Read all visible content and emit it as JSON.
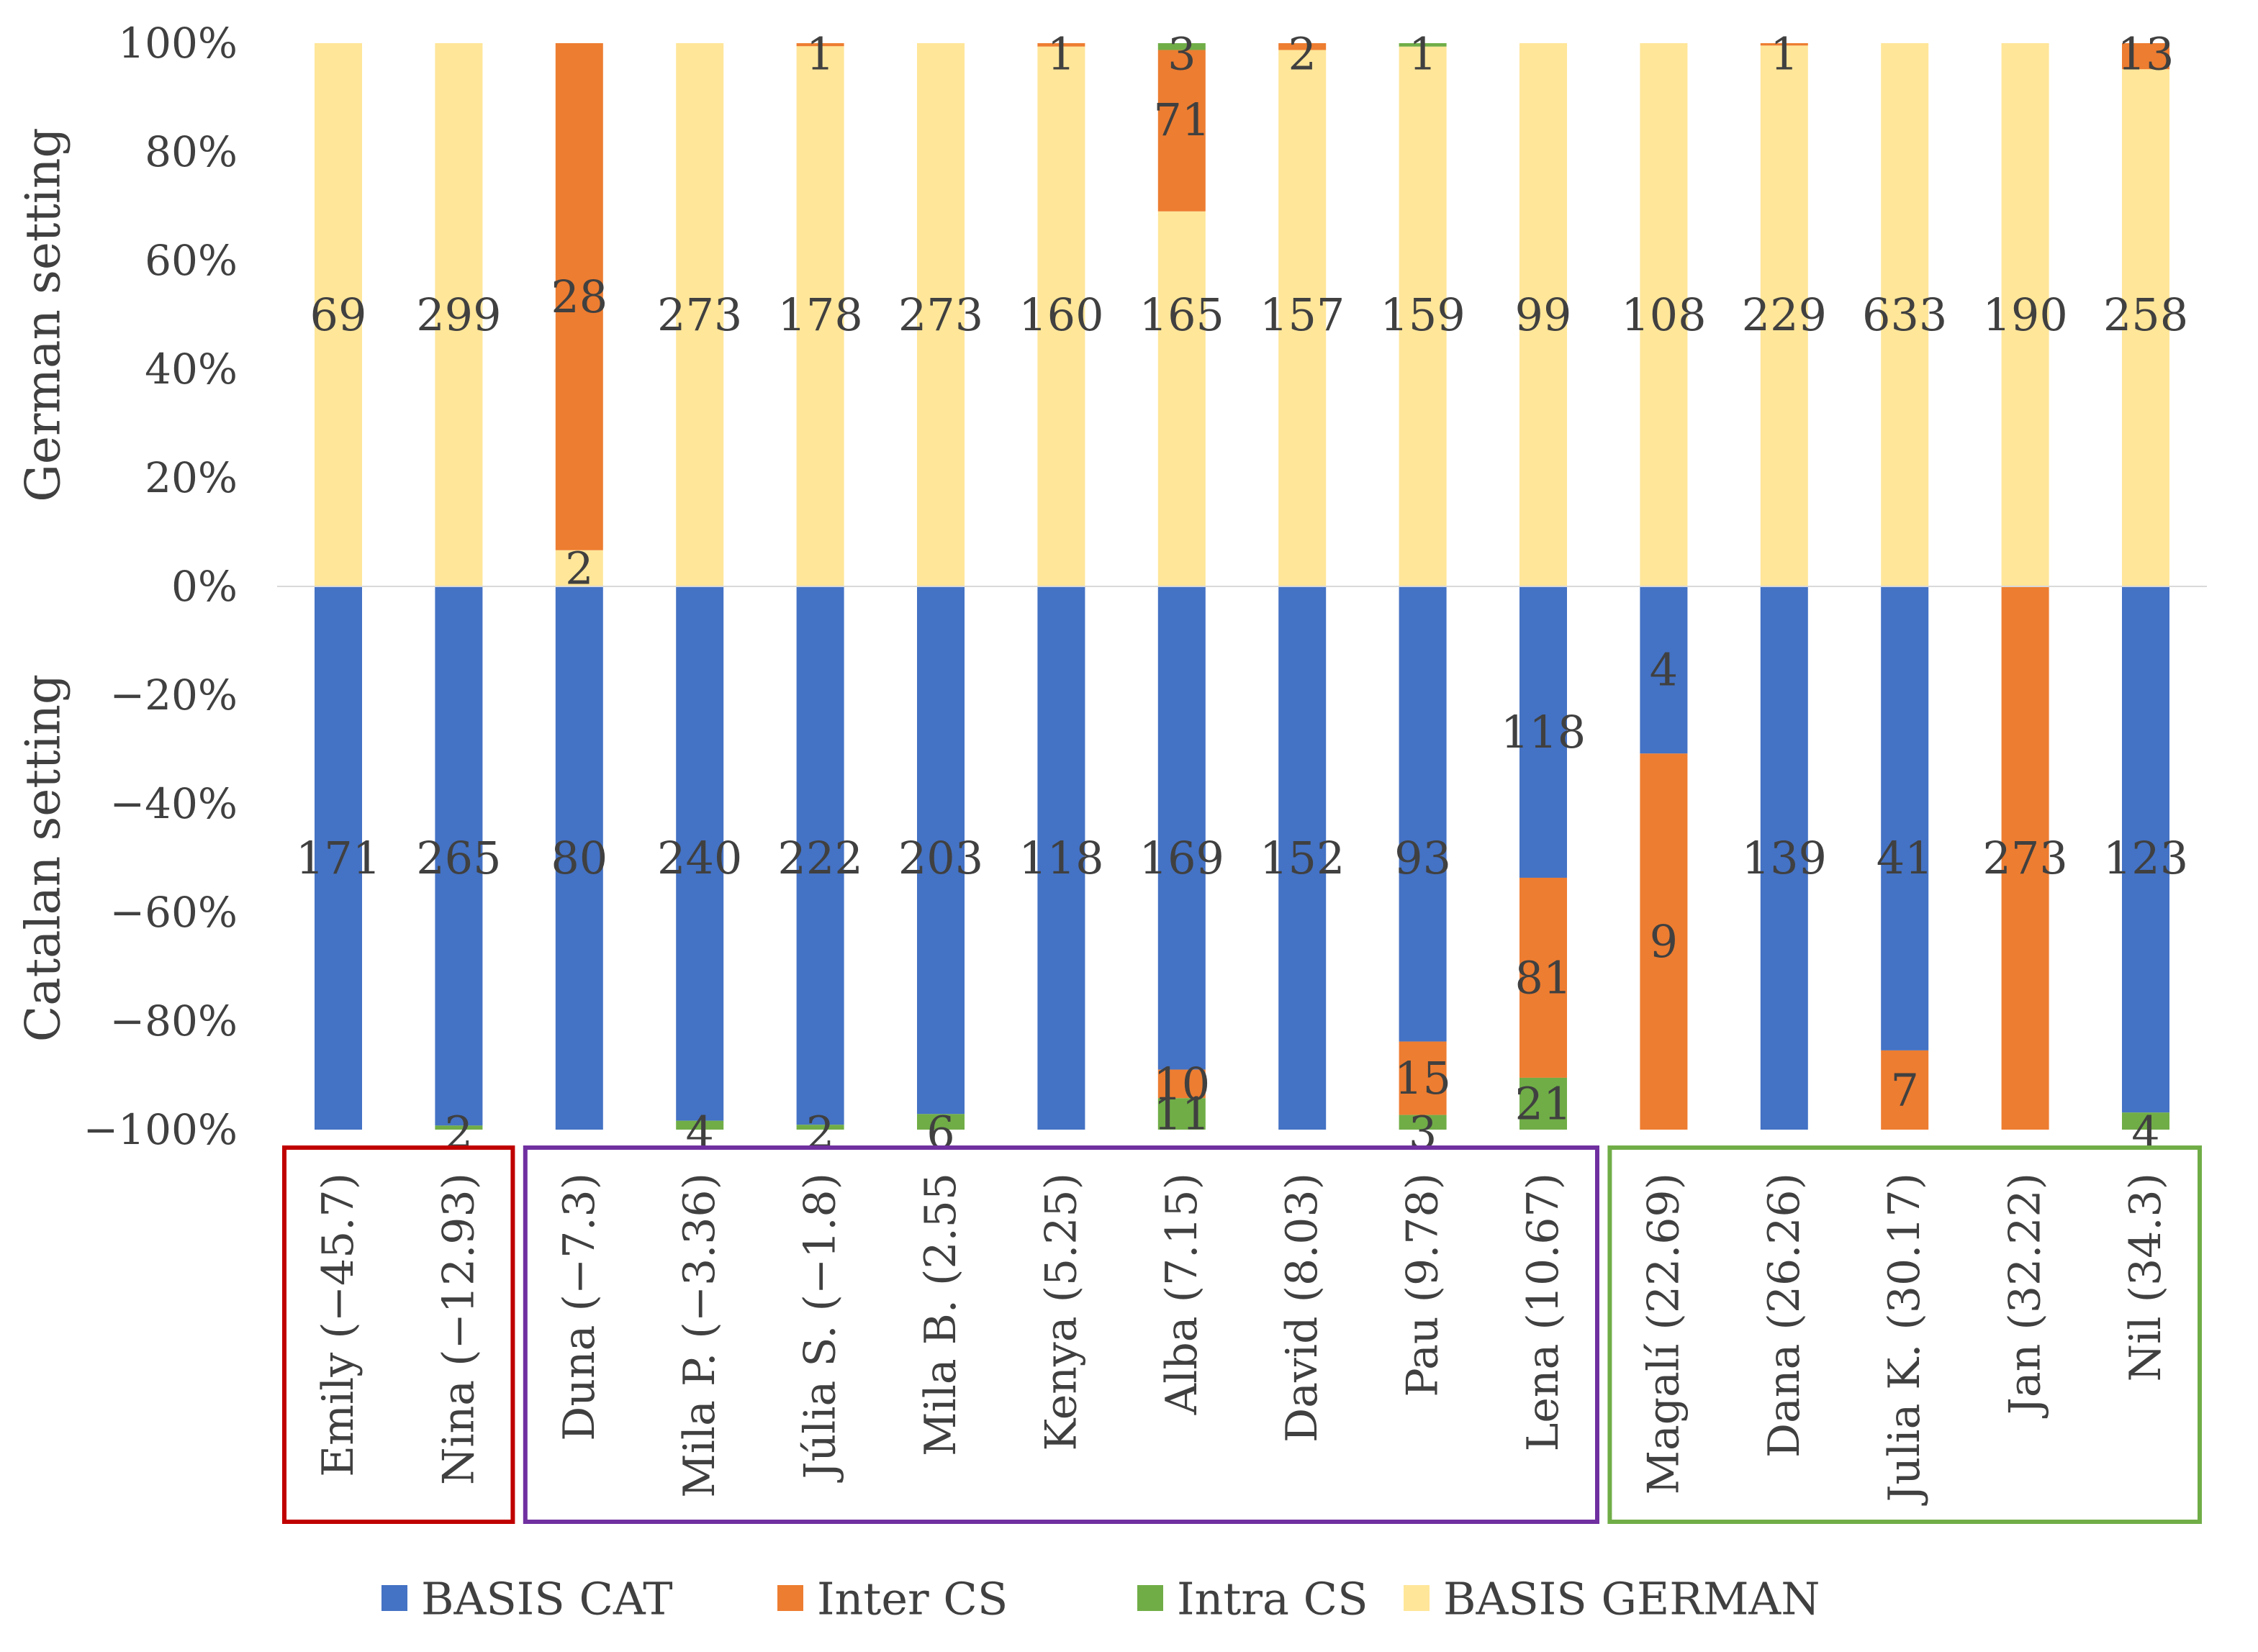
{
  "chart_data": {
    "type": "bar",
    "stacked": true,
    "normalized": true,
    "categories": [
      "Emily (−45.7)",
      "Nina (−12.93)",
      "Duna (−7.3)",
      "Mila P. (−3.36)",
      "Júlia S. (−1.8)",
      "Mila B. (2.55",
      "Kenya (5.25)",
      "Alba (7.15)",
      "David (8.03)",
      "Pau (9.78)",
      "Lena (10.67)",
      "Magalí (22.69)",
      "Dana (26.26)",
      "Julia K. (30.17)",
      "Jan (32.22)",
      "Nil (34.3)"
    ],
    "y_ticks": [
      "100%",
      "80%",
      "60%",
      "40%",
      "20%",
      "0%",
      "−20%",
      "−40%",
      "−60%",
      "−80%",
      "−100%"
    ],
    "y_range": [
      -100,
      100
    ],
    "grid": false,
    "ylabel_top": "German setting",
    "ylabel_bottom": "Catalan setting",
    "legend_position": "bottom",
    "series": [
      {
        "name": "BASIS CAT",
        "color": "#4472C4"
      },
      {
        "name": "Inter CS",
        "color": "#ED7D31"
      },
      {
        "name": "Intra CS",
        "color": "#70AD47"
      },
      {
        "name": "BASIS GERMAN",
        "color": "#FFE699"
      }
    ],
    "german_setting": [
      {
        "basis_german": 69,
        "inter_cs": 0,
        "intra_cs": 0
      },
      {
        "basis_german": 299,
        "inter_cs": 0,
        "intra_cs": 0
      },
      {
        "basis_german": 2,
        "inter_cs": 28,
        "intra_cs": 0
      },
      {
        "basis_german": 273,
        "inter_cs": 0,
        "intra_cs": 0
      },
      {
        "basis_german": 178,
        "inter_cs": 1,
        "intra_cs": 0
      },
      {
        "basis_german": 273,
        "inter_cs": 0,
        "intra_cs": 0
      },
      {
        "basis_german": 160,
        "inter_cs": 1,
        "intra_cs": 0
      },
      {
        "basis_german": 165,
        "inter_cs": 71,
        "intra_cs": 3
      },
      {
        "basis_german": 157,
        "inter_cs": 2,
        "intra_cs": 0
      },
      {
        "basis_german": 159,
        "inter_cs": 0,
        "intra_cs": 1
      },
      {
        "basis_german": 99,
        "inter_cs": 0,
        "intra_cs": 0
      },
      {
        "basis_german": 108,
        "inter_cs": 0,
        "intra_cs": 0
      },
      {
        "basis_german": 229,
        "inter_cs": 1,
        "intra_cs": 0
      },
      {
        "basis_german": 633,
        "inter_cs": 0,
        "intra_cs": 0
      },
      {
        "basis_german": 190,
        "inter_cs": 0,
        "intra_cs": 0
      },
      {
        "basis_german": 258,
        "inter_cs": 13,
        "intra_cs": 0
      }
    ],
    "catalan_setting": [
      {
        "basis_cat": 171,
        "inter_cs": 0,
        "intra_cs": 0
      },
      {
        "basis_cat": 265,
        "inter_cs": 0,
        "intra_cs": 2
      },
      {
        "basis_cat": 80,
        "inter_cs": 0,
        "intra_cs": 0
      },
      {
        "basis_cat": 240,
        "inter_cs": 0,
        "intra_cs": 4
      },
      {
        "basis_cat": 222,
        "inter_cs": 0,
        "intra_cs": 2
      },
      {
        "basis_cat": 203,
        "inter_cs": 0,
        "intra_cs": 6
      },
      {
        "basis_cat": 118,
        "inter_cs": 0,
        "intra_cs": 0
      },
      {
        "basis_cat": 169,
        "inter_cs": 10,
        "intra_cs": 11
      },
      {
        "basis_cat": 152,
        "inter_cs": 0,
        "intra_cs": 0
      },
      {
        "basis_cat": 93,
        "inter_cs": 15,
        "intra_cs": 3
      },
      {
        "basis_cat": 118,
        "inter_cs": 81,
        "intra_cs": 21
      },
      {
        "basis_cat": 4,
        "inter_cs": 9,
        "intra_cs": 0
      },
      {
        "basis_cat": 139,
        "inter_cs": 0,
        "intra_cs": 0
      },
      {
        "basis_cat": 41,
        "inter_cs": 7,
        "intra_cs": 0
      },
      {
        "basis_cat": 0,
        "inter_cs": 273,
        "intra_cs": 0
      },
      {
        "basis_cat": 123,
        "inter_cs": 0,
        "intra_cs": 4
      }
    ],
    "groups": [
      {
        "name": "group-1",
        "first": 0,
        "last": 1,
        "color": "#C00000"
      },
      {
        "name": "group-2",
        "first": 2,
        "last": 10,
        "color": "#7030A0"
      },
      {
        "name": "group-3",
        "first": 11,
        "last": 15,
        "color": "#70AD47"
      }
    ]
  }
}
